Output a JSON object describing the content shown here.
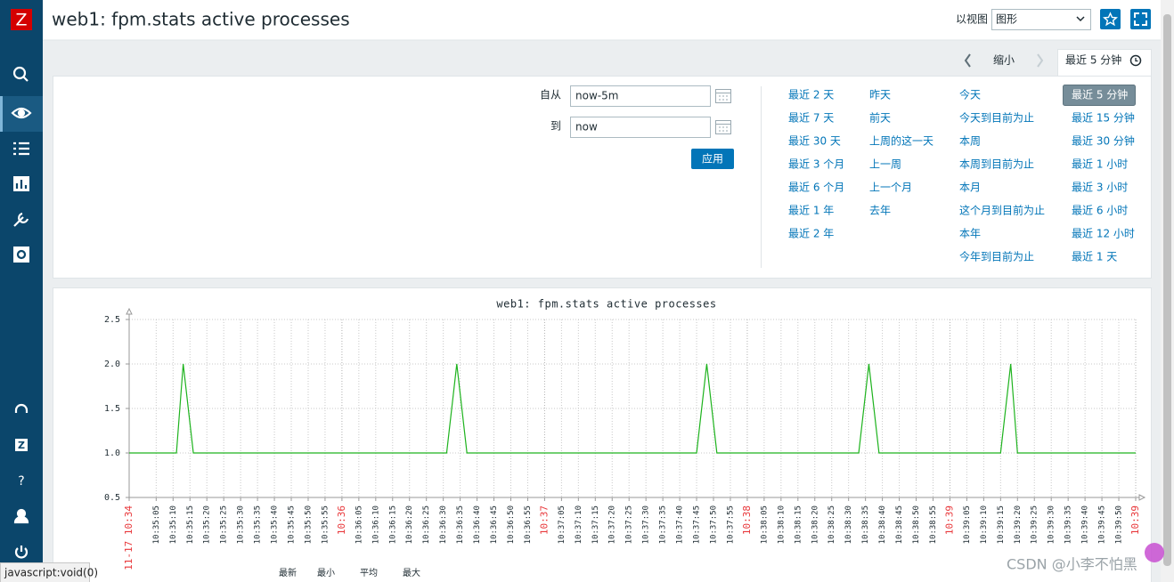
{
  "sidebar": {
    "logo": "Z",
    "support": "Z",
    "help": "?"
  },
  "header": {
    "title": "web1: fpm.stats active processes",
    "view_label": "以视图",
    "view_select": "图形"
  },
  "timebar": {
    "zoom_out": "缩小",
    "active_tab": "最近 5 分钟"
  },
  "filter": {
    "from_label": "自从",
    "from_value": "now-5m",
    "to_label": "到",
    "to_value": "now",
    "apply": "应用",
    "selected_range": {
      "column": 3,
      "row": 0
    },
    "quick_ranges": [
      [
        "最近 2 天",
        "最近 7 天",
        "最近 30 天",
        "最近 3 个月",
        "最近 6 个月",
        "最近 1 年",
        "最近 2 年"
      ],
      [
        "昨天",
        "前天",
        "上周的这一天",
        "上一周",
        "上一个月",
        "去年"
      ],
      [
        "今天",
        "今天到目前为止",
        "本周",
        "本周到目前为止",
        "本月",
        "这个月到目前为止",
        "本年",
        "今年到目前为止"
      ],
      [
        "最近 5 分钟",
        "最近 15 分钟",
        "最近 30 分钟",
        "最近 1 小时",
        "最近 3 小时",
        "最近 6 小时",
        "最近 12 小时",
        "最近 1 天"
      ]
    ]
  },
  "chart_data": {
    "type": "line",
    "title": "web1: fpm.stats active processes",
    "x": [
      "10:34:57",
      "10:35:11",
      "10:35:13",
      "10:35:16",
      "10:36:31",
      "10:36:34",
      "10:36:37",
      "10:37:45",
      "10:37:48",
      "10:37:51",
      "10:38:33",
      "10:38:36",
      "10:38:39",
      "10:39:15",
      "10:39:18",
      "10:39:20",
      "10:39:55"
    ],
    "series": [
      {
        "color": "#1eb31e",
        "values": [
          1,
          1,
          2,
          1,
          1,
          2,
          1,
          1,
          2,
          1,
          1,
          2,
          1,
          1,
          2,
          1,
          1
        ]
      }
    ],
    "xlim": [
      "10:34:57",
      "10:39:55"
    ],
    "xticks": [
      {
        "value": "10:34:57",
        "label": "11-17 10:34"
      },
      "10:35:05",
      "10:35:10",
      "10:35:15",
      "10:35:20",
      "10:35:25",
      "10:35:30",
      "10:35:35",
      "10:35:40",
      "10:35:45",
      "10:35:50",
      "10:35:55",
      {
        "value": "10:36:00",
        "label": "10:36"
      },
      "10:36:05",
      "10:36:10",
      "10:36:15",
      "10:36:20",
      "10:36:25",
      "10:36:30",
      "10:36:35",
      "10:36:40",
      "10:36:45",
      "10:36:50",
      "10:36:55",
      {
        "value": "10:37:00",
        "label": "10:37"
      },
      "10:37:05",
      "10:37:10",
      "10:37:15",
      "10:37:20",
      "10:37:25",
      "10:37:30",
      "10:37:35",
      "10:37:40",
      "10:37:45",
      "10:37:50",
      "10:37:55",
      {
        "value": "10:38:00",
        "label": "10:38"
      },
      "10:38:05",
      "10:38:10",
      "10:38:15",
      "10:38:20",
      "10:38:25",
      "10:38:30",
      "10:38:35",
      "10:38:40",
      "10:38:45",
      "10:38:50",
      "10:38:55",
      {
        "value": "10:39:00",
        "label": "10:39"
      },
      "10:39:05",
      "10:39:10",
      "10:39:15",
      "10:39:20",
      "10:39:25",
      "10:39:30",
      "10:39:35",
      "10:39:40",
      "10:39:45",
      "10:39:50",
      {
        "value": "10:39:55",
        "label": "10:39"
      }
    ],
    "ylim": [
      0.5,
      2.5
    ],
    "yticks": [
      0.5,
      {
        "value": 1,
        "label": "1.0"
      },
      1.5,
      {
        "value": 2,
        "label": "2.0"
      },
      2.5
    ],
    "grid": true,
    "major_tick_color": "#e8373a",
    "legend_columns": [
      "最新",
      "最小",
      "平均",
      "最大"
    ]
  },
  "status_bar": "javascript:void(0)",
  "watermark": "CSDN @小李不怕黑"
}
